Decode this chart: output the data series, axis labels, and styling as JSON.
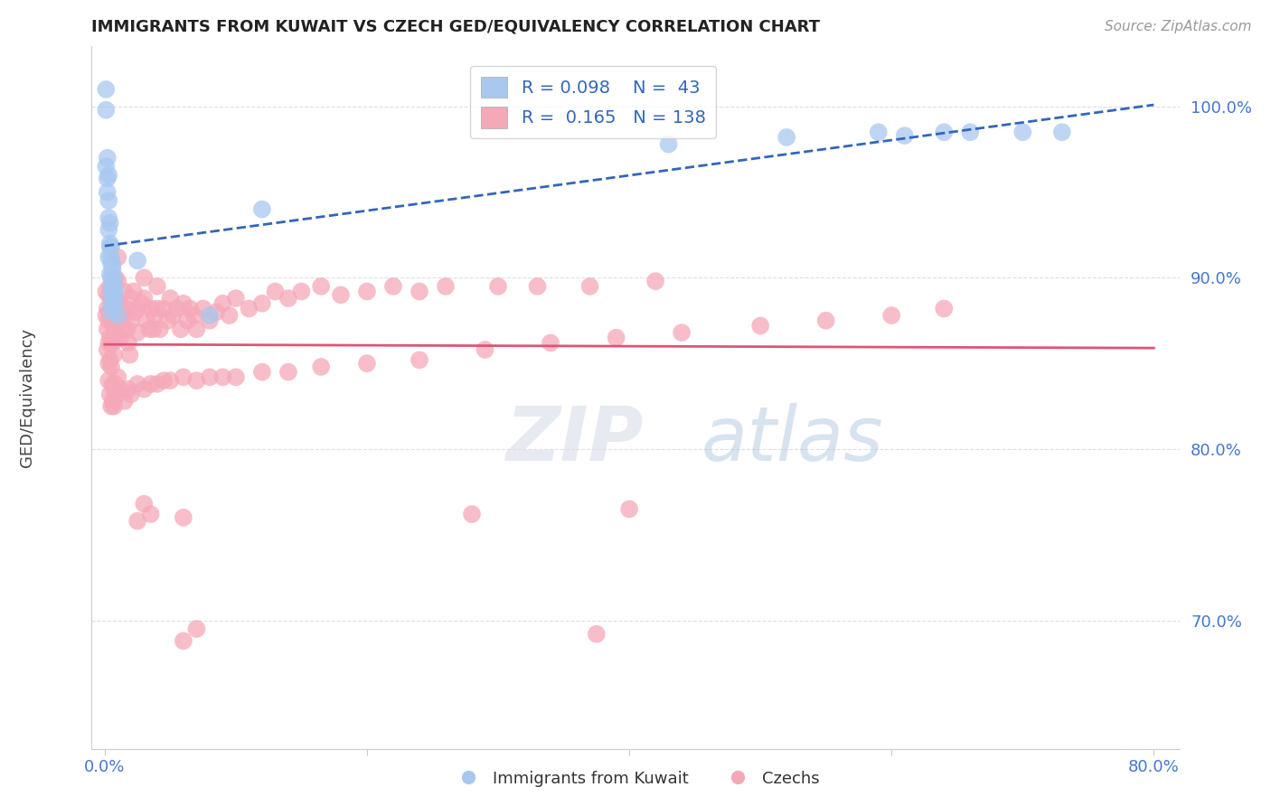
{
  "title": "IMMIGRANTS FROM KUWAIT VS CZECH GED/EQUIVALENCY CORRELATION CHART",
  "source_text": "Source: ZipAtlas.com",
  "xlabel_blue": "Immigrants from Kuwait",
  "xlabel_pink": "Czechs",
  "ylabel": "GED/Equivalency",
  "watermark": "ZIPatlas",
  "xlim": [
    -0.01,
    0.82
  ],
  "ylim": [
    0.625,
    1.035
  ],
  "blue_R": 0.098,
  "blue_N": 43,
  "pink_R": 0.165,
  "pink_N": 138,
  "blue_color": "#a8c8f0",
  "pink_color": "#f5a8b8",
  "blue_line_color": "#3366bb",
  "pink_line_color": "#dd5577",
  "blue_x": [
    0.001,
    0.001,
    0.002,
    0.002,
    0.003,
    0.003,
    0.003,
    0.003,
    0.004,
    0.004,
    0.004,
    0.005,
    0.005,
    0.005,
    0.005,
    0.005,
    0.005,
    0.006,
    0.006,
    0.006,
    0.007,
    0.008,
    0.025,
    0.08,
    0.12,
    0.43,
    0.52,
    0.59,
    0.61,
    0.64,
    0.66,
    0.7,
    0.73,
    0.001,
    0.002,
    0.003,
    0.004,
    0.005,
    0.006,
    0.006,
    0.007,
    0.008,
    0.01
  ],
  "blue_y": [
    1.01,
    0.998,
    0.97,
    0.958,
    0.96,
    0.945,
    0.928,
    0.912,
    0.932,
    0.918,
    0.902,
    0.918,
    0.908,
    0.9,
    0.892,
    0.885,
    0.88,
    0.908,
    0.898,
    0.89,
    0.895,
    0.892,
    0.91,
    0.878,
    0.94,
    0.978,
    0.982,
    0.985,
    0.983,
    0.985,
    0.985,
    0.985,
    0.985,
    0.965,
    0.95,
    0.935,
    0.92,
    0.912,
    0.905,
    0.895,
    0.9,
    0.885,
    0.878
  ],
  "pink_x": [
    0.001,
    0.001,
    0.002,
    0.002,
    0.002,
    0.003,
    0.003,
    0.003,
    0.003,
    0.004,
    0.004,
    0.004,
    0.004,
    0.005,
    0.005,
    0.005,
    0.005,
    0.006,
    0.006,
    0.006,
    0.007,
    0.007,
    0.007,
    0.008,
    0.008,
    0.008,
    0.009,
    0.009,
    0.01,
    0.01,
    0.011,
    0.012,
    0.012,
    0.013,
    0.014,
    0.015,
    0.015,
    0.016,
    0.017,
    0.018,
    0.019,
    0.02,
    0.02,
    0.022,
    0.023,
    0.025,
    0.025,
    0.028,
    0.03,
    0.03,
    0.032,
    0.034,
    0.035,
    0.037,
    0.038,
    0.04,
    0.04,
    0.042,
    0.045,
    0.048,
    0.05,
    0.052,
    0.055,
    0.058,
    0.06,
    0.063,
    0.065,
    0.068,
    0.07,
    0.075,
    0.08,
    0.085,
    0.09,
    0.095,
    0.1,
    0.11,
    0.12,
    0.13,
    0.14,
    0.15,
    0.165,
    0.18,
    0.2,
    0.22,
    0.24,
    0.26,
    0.3,
    0.33,
    0.37,
    0.42,
    0.003,
    0.004,
    0.005,
    0.006,
    0.006,
    0.007,
    0.007,
    0.008,
    0.008,
    0.009,
    0.01,
    0.012,
    0.015,
    0.018,
    0.02,
    0.025,
    0.03,
    0.035,
    0.04,
    0.045,
    0.05,
    0.06,
    0.07,
    0.08,
    0.09,
    0.1,
    0.12,
    0.14,
    0.165,
    0.2,
    0.24,
    0.29,
    0.34,
    0.39,
    0.44,
    0.5,
    0.55,
    0.6,
    0.64,
    0.06,
    0.025,
    0.03,
    0.035,
    0.28,
    0.4,
    0.06,
    0.07,
    0.375
  ],
  "pink_y": [
    0.892,
    0.878,
    0.882,
    0.87,
    0.858,
    0.89,
    0.875,
    0.862,
    0.85,
    0.895,
    0.88,
    0.865,
    0.852,
    0.888,
    0.875,
    0.862,
    0.848,
    0.892,
    0.878,
    0.862,
    0.882,
    0.87,
    0.855,
    0.9,
    0.888,
    0.875,
    0.882,
    0.868,
    0.912,
    0.898,
    0.885,
    0.878,
    0.865,
    0.88,
    0.87,
    0.892,
    0.878,
    0.882,
    0.87,
    0.862,
    0.855,
    0.888,
    0.875,
    0.892,
    0.88,
    0.882,
    0.868,
    0.885,
    0.9,
    0.888,
    0.875,
    0.87,
    0.882,
    0.87,
    0.878,
    0.895,
    0.882,
    0.87,
    0.882,
    0.875,
    0.888,
    0.878,
    0.882,
    0.87,
    0.885,
    0.875,
    0.882,
    0.878,
    0.87,
    0.882,
    0.875,
    0.88,
    0.885,
    0.878,
    0.888,
    0.882,
    0.885,
    0.892,
    0.888,
    0.892,
    0.895,
    0.89,
    0.892,
    0.895,
    0.892,
    0.895,
    0.895,
    0.895,
    0.895,
    0.898,
    0.84,
    0.832,
    0.825,
    0.838,
    0.828,
    0.835,
    0.825,
    0.838,
    0.83,
    0.835,
    0.842,
    0.835,
    0.828,
    0.835,
    0.832,
    0.838,
    0.835,
    0.838,
    0.838,
    0.84,
    0.84,
    0.842,
    0.84,
    0.842,
    0.842,
    0.842,
    0.845,
    0.845,
    0.848,
    0.85,
    0.852,
    0.858,
    0.862,
    0.865,
    0.868,
    0.872,
    0.875,
    0.878,
    0.882,
    0.76,
    0.758,
    0.768,
    0.762,
    0.762,
    0.765,
    0.688,
    0.695,
    0.692
  ]
}
